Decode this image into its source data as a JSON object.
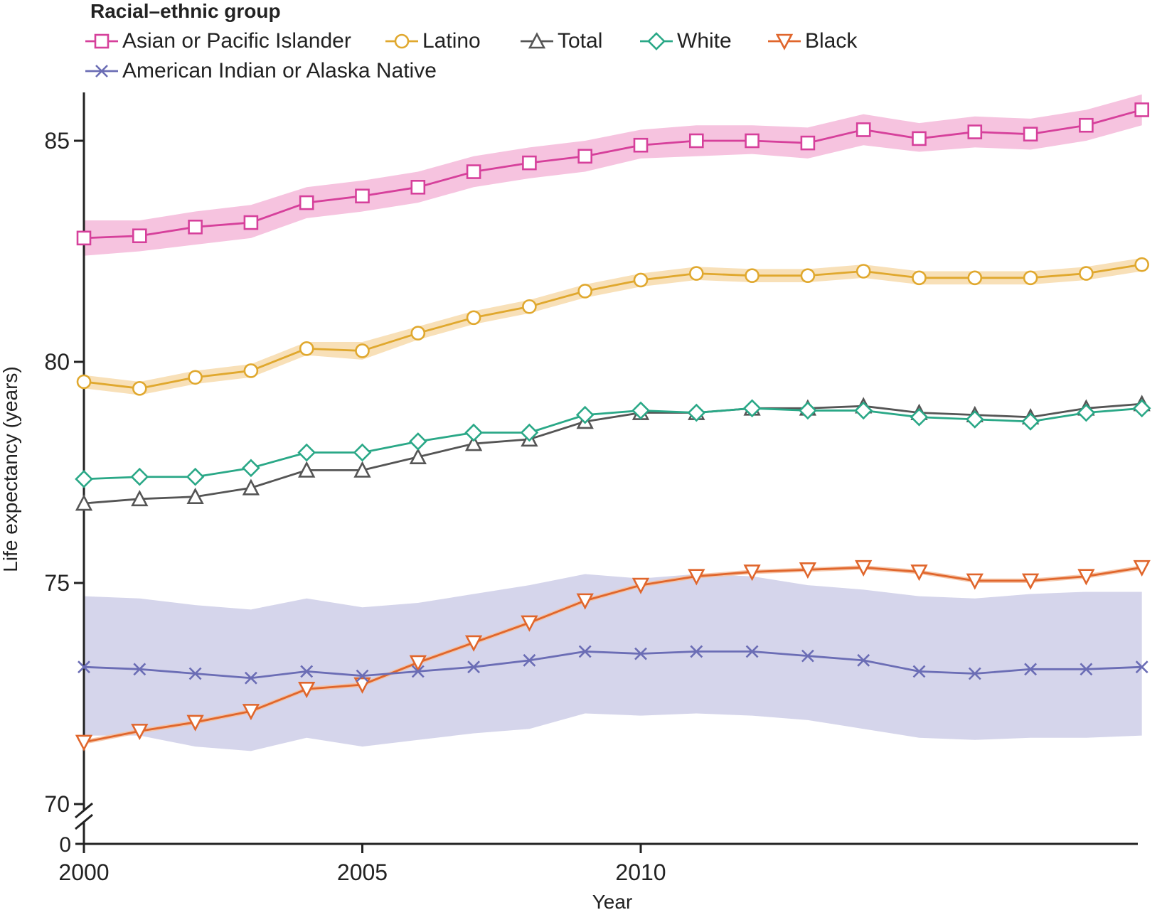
{
  "chart_data": {
    "type": "line",
    "title": "",
    "legend_title": "Racial–ethnic group",
    "xlabel": "Year",
    "ylabel": "Life expectancy (years)",
    "xlim": [
      2000,
      2019
    ],
    "ylim": [
      70,
      86
    ],
    "y_axis_break": true,
    "x_ticks": [
      2000,
      2005,
      2010
    ],
    "x_tick_labels": [
      "2000",
      "2005",
      "2010"
    ],
    "y_ticks": [
      70,
      75,
      80,
      85
    ],
    "y_tick_labels": [
      "70",
      "75",
      "80",
      "85"
    ],
    "y_break_tick_label": "0",
    "legend_placement": "top-left",
    "grid": false,
    "x": [
      2000,
      2001,
      2002,
      2003,
      2004,
      2005,
      2006,
      2007,
      2008,
      2009,
      2010,
      2011,
      2012,
      2013,
      2014,
      2015,
      2016,
      2017,
      2018,
      2019
    ],
    "series": [
      {
        "name": "Asian or Pacific Islander",
        "color": "#d6409b",
        "band_color": "#f5b8d9",
        "marker": "square",
        "values": [
          82.8,
          82.85,
          83.05,
          83.15,
          83.6,
          83.75,
          83.95,
          84.3,
          84.5,
          84.65,
          84.9,
          85.0,
          85.0,
          84.95,
          85.25,
          85.05,
          85.2,
          85.15,
          85.35,
          85.7
        ],
        "lower": [
          82.4,
          82.5,
          82.65,
          82.8,
          83.25,
          83.4,
          83.6,
          83.95,
          84.15,
          84.3,
          84.6,
          84.65,
          84.7,
          84.6,
          84.9,
          84.75,
          84.85,
          84.8,
          85.0,
          85.35
        ],
        "upper": [
          83.2,
          83.2,
          83.4,
          83.55,
          83.95,
          84.1,
          84.3,
          84.65,
          84.85,
          85.0,
          85.25,
          85.35,
          85.35,
          85.3,
          85.6,
          85.4,
          85.55,
          85.5,
          85.7,
          86.05
        ]
      },
      {
        "name": "Latino",
        "color": "#e0a82e",
        "band_color": "#f7dbab",
        "marker": "circle",
        "values": [
          79.55,
          79.4,
          79.65,
          79.8,
          80.3,
          80.25,
          80.65,
          81.0,
          81.25,
          81.6,
          81.85,
          82.0,
          81.95,
          81.95,
          82.05,
          81.9,
          81.9,
          81.9,
          82.0,
          82.2
        ],
        "lower": [
          79.4,
          79.25,
          79.5,
          79.65,
          80.15,
          80.05,
          80.5,
          80.85,
          81.1,
          81.45,
          81.7,
          81.85,
          81.8,
          81.8,
          81.9,
          81.75,
          81.75,
          81.75,
          81.85,
          82.05
        ],
        "upper": [
          79.7,
          79.55,
          79.8,
          79.95,
          80.45,
          80.45,
          80.8,
          81.15,
          81.4,
          81.75,
          82.0,
          82.15,
          82.1,
          82.1,
          82.2,
          82.05,
          82.05,
          82.05,
          82.15,
          82.35
        ]
      },
      {
        "name": "Total",
        "color": "#555555",
        "marker": "triangle-up",
        "values": [
          76.8,
          76.9,
          76.95,
          77.15,
          77.55,
          77.55,
          77.85,
          78.15,
          78.25,
          78.65,
          78.85,
          78.85,
          78.95,
          78.95,
          79.0,
          78.85,
          78.8,
          78.75,
          78.95,
          79.05
        ]
      },
      {
        "name": "White",
        "color": "#2aa887",
        "marker": "diamond",
        "values": [
          77.35,
          77.4,
          77.4,
          77.6,
          77.95,
          77.95,
          78.2,
          78.4,
          78.4,
          78.8,
          78.9,
          78.85,
          78.95,
          78.9,
          78.9,
          78.75,
          78.7,
          78.65,
          78.85,
          78.95
        ]
      },
      {
        "name": "Black",
        "color": "#e0662c",
        "band_color": "#f5bfa0",
        "marker": "triangle-down",
        "values": [
          71.4,
          71.65,
          71.85,
          72.1,
          72.6,
          72.7,
          73.2,
          73.65,
          74.1,
          74.6,
          74.95,
          75.15,
          75.25,
          75.3,
          75.35,
          75.25,
          75.05,
          75.05,
          75.15,
          75.35
        ],
        "lower": [
          71.35,
          71.6,
          71.8,
          72.05,
          72.55,
          72.65,
          73.15,
          73.6,
          74.05,
          74.55,
          74.9,
          75.1,
          75.2,
          75.25,
          75.3,
          75.2,
          75.0,
          75.0,
          75.1,
          75.3
        ],
        "upper": [
          71.45,
          71.7,
          71.9,
          72.15,
          72.65,
          72.75,
          73.25,
          73.7,
          74.15,
          74.65,
          75.0,
          75.2,
          75.3,
          75.35,
          75.4,
          75.3,
          75.1,
          75.1,
          75.2,
          75.4
        ]
      },
      {
        "name": "American Indian or Alaska Native",
        "color": "#6b6db5",
        "band_color": "#d3d3ea",
        "marker": "x",
        "values": [
          73.1,
          73.05,
          72.95,
          72.85,
          73.0,
          72.9,
          73.0,
          73.1,
          73.25,
          73.45,
          73.4,
          73.45,
          73.45,
          73.35,
          73.25,
          73.0,
          72.95,
          73.05,
          73.05,
          73.1
        ],
        "lower": [
          71.55,
          71.55,
          71.3,
          71.2,
          71.5,
          71.3,
          71.45,
          71.6,
          71.7,
          72.05,
          72.0,
          72.05,
          72.0,
          71.9,
          71.7,
          71.5,
          71.45,
          71.5,
          71.5,
          71.55
        ],
        "upper": [
          74.7,
          74.65,
          74.5,
          74.4,
          74.65,
          74.45,
          74.55,
          74.75,
          74.95,
          75.2,
          75.1,
          75.2,
          75.15,
          74.95,
          74.85,
          74.7,
          74.65,
          74.75,
          74.8,
          74.8
        ]
      }
    ]
  }
}
